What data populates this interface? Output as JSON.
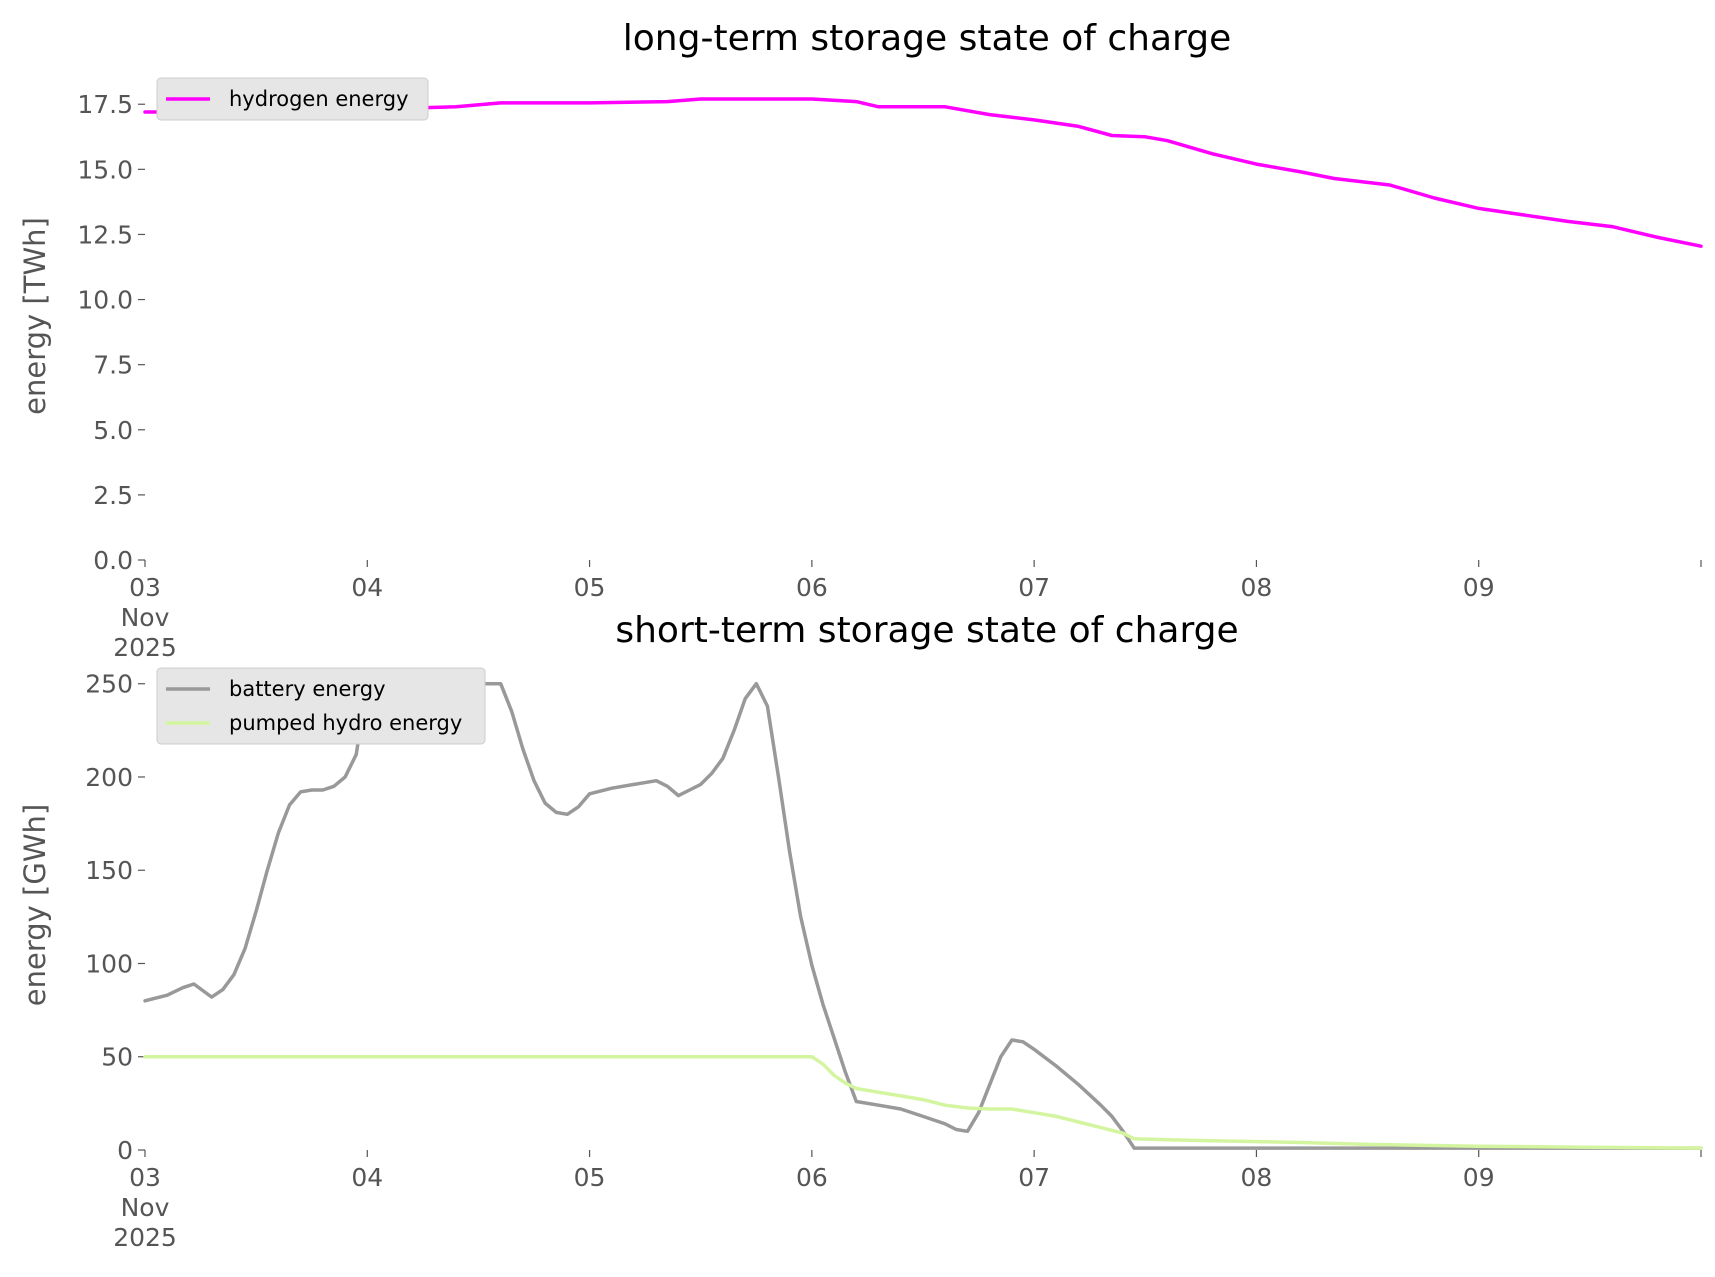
{
  "chart_data": [
    {
      "type": "line",
      "title": "long-term storage state of charge",
      "xlabel": "",
      "ylabel": "energy [TWh]",
      "ylim": [
        0,
        18.2
      ],
      "xlim": [
        0,
        7
      ],
      "x_unit": "days since 03 Nov 2025 00:00",
      "x_ticks": [
        0,
        1,
        2,
        3,
        4,
        5,
        6,
        7
      ],
      "x_tick_labels": [
        "03\nNov\n2025",
        "04",
        "05",
        "06",
        "07",
        "08",
        "09",
        ""
      ],
      "y_ticks": [
        0,
        2.5,
        5,
        7.5,
        10,
        12.5,
        15,
        17.5
      ],
      "y_tick_labels": [
        "0.0",
        "2.5",
        "5.0",
        "7.5",
        "10.0",
        "12.5",
        "15.0",
        "17.5"
      ],
      "grid": false,
      "legend_placement": "upper-left",
      "series": [
        {
          "name": "hydrogen energy",
          "color": "#ff00ff",
          "points": [
            [
              0,
              17.2
            ],
            [
              0.3,
              17.2
            ],
            [
              0.6,
              17.25
            ],
            [
              1.0,
              17.3
            ],
            [
              1.4,
              17.4
            ],
            [
              1.6,
              17.55
            ],
            [
              2.0,
              17.55
            ],
            [
              2.35,
              17.6
            ],
            [
              2.5,
              17.7
            ],
            [
              3.0,
              17.7
            ],
            [
              3.2,
              17.6
            ],
            [
              3.3,
              17.4
            ],
            [
              3.6,
              17.4
            ],
            [
              3.8,
              17.1
            ],
            [
              4.0,
              16.9
            ],
            [
              4.2,
              16.65
            ],
            [
              4.35,
              16.3
            ],
            [
              4.5,
              16.25
            ],
            [
              4.6,
              16.1
            ],
            [
              4.8,
              15.6
            ],
            [
              5.0,
              15.2
            ],
            [
              5.2,
              14.9
            ],
            [
              5.35,
              14.65
            ],
            [
              5.6,
              14.4
            ],
            [
              5.8,
              13.9
            ],
            [
              6.0,
              13.5
            ],
            [
              6.2,
              13.25
            ],
            [
              6.4,
              13.0
            ],
            [
              6.6,
              12.8
            ],
            [
              6.8,
              12.4
            ],
            [
              7.0,
              12.05
            ]
          ]
        }
      ]
    },
    {
      "type": "line",
      "title": "short-term storage state of charge",
      "xlabel": "",
      "ylabel": "energy [GWh]",
      "ylim": [
        0,
        252
      ],
      "xlim": [
        0,
        7
      ],
      "x_unit": "days since 03 Nov 2025 00:00",
      "x_ticks": [
        0,
        1,
        2,
        3,
        4,
        5,
        6,
        7
      ],
      "x_tick_labels": [
        "03\nNov\n2025",
        "04",
        "05",
        "06",
        "07",
        "08",
        "09",
        ""
      ],
      "y_ticks": [
        0,
        50,
        100,
        150,
        200,
        250
      ],
      "y_tick_labels": [
        "0",
        "50",
        "100",
        "150",
        "200",
        "250"
      ],
      "grid": false,
      "legend_placement": "upper-left",
      "series": [
        {
          "name": "battery energy",
          "color": "#999999",
          "points": [
            [
              0,
              80
            ],
            [
              0.1,
              83
            ],
            [
              0.17,
              87
            ],
            [
              0.22,
              89
            ],
            [
              0.3,
              82
            ],
            [
              0.35,
              86
            ],
            [
              0.4,
              94
            ],
            [
              0.45,
              108
            ],
            [
              0.5,
              128
            ],
            [
              0.55,
              150
            ],
            [
              0.6,
              170
            ],
            [
              0.65,
              185
            ],
            [
              0.7,
              192
            ],
            [
              0.75,
              193
            ],
            [
              0.8,
              193
            ],
            [
              0.85,
              195
            ],
            [
              0.9,
              200
            ],
            [
              0.95,
              212
            ],
            [
              1.0,
              250
            ],
            [
              1.1,
              250
            ],
            [
              1.6,
              250
            ],
            [
              1.65,
              235
            ],
            [
              1.7,
              215
            ],
            [
              1.75,
              198
            ],
            [
              1.8,
              186
            ],
            [
              1.85,
              181
            ],
            [
              1.9,
              180
            ],
            [
              1.95,
              184
            ],
            [
              2.0,
              191
            ],
            [
              2.1,
              194
            ],
            [
              2.2,
              196
            ],
            [
              2.3,
              198
            ],
            [
              2.35,
              195
            ],
            [
              2.4,
              190
            ],
            [
              2.45,
              193
            ],
            [
              2.5,
              196
            ],
            [
              2.55,
              202
            ],
            [
              2.6,
              210
            ],
            [
              2.65,
              225
            ],
            [
              2.7,
              242
            ],
            [
              2.75,
              250
            ],
            [
              2.8,
              238
            ],
            [
              2.85,
              200
            ],
            [
              2.9,
              160
            ],
            [
              2.95,
              125
            ],
            [
              3.0,
              99
            ],
            [
              3.05,
              78
            ],
            [
              3.1,
              60
            ],
            [
              3.15,
              42
            ],
            [
              3.2,
              26
            ],
            [
              3.3,
              24
            ],
            [
              3.4,
              22
            ],
            [
              3.5,
              18
            ],
            [
              3.6,
              14
            ],
            [
              3.65,
              11
            ],
            [
              3.7,
              10
            ],
            [
              3.75,
              20
            ],
            [
              3.8,
              35
            ],
            [
              3.85,
              50
            ],
            [
              3.9,
              59
            ],
            [
              3.95,
              58
            ],
            [
              4.0,
              54
            ],
            [
              4.1,
              45
            ],
            [
              4.2,
              35
            ],
            [
              4.3,
              24
            ],
            [
              4.35,
              18
            ],
            [
              4.4,
              10
            ],
            [
              4.45,
              1
            ],
            [
              5.0,
              1
            ],
            [
              6.0,
              1
            ],
            [
              7.0,
              1
            ]
          ]
        },
        {
          "name": "pumped hydro energy",
          "color": "#d4f5a0",
          "points": [
            [
              0,
              50
            ],
            [
              1.0,
              50
            ],
            [
              2.0,
              50
            ],
            [
              2.9,
              50
            ],
            [
              3.0,
              50
            ],
            [
              3.05,
              46
            ],
            [
              3.1,
              40
            ],
            [
              3.15,
              36
            ],
            [
              3.2,
              33
            ],
            [
              3.3,
              31
            ],
            [
              3.4,
              29
            ],
            [
              3.5,
              27
            ],
            [
              3.6,
              24
            ],
            [
              3.7,
              22.5
            ],
            [
              3.8,
              22
            ],
            [
              3.9,
              22
            ],
            [
              4.0,
              20
            ],
            [
              4.1,
              18
            ],
            [
              4.2,
              15
            ],
            [
              4.3,
              12
            ],
            [
              4.4,
              9
            ],
            [
              4.45,
              6
            ],
            [
              4.6,
              5.5
            ],
            [
              4.8,
              5
            ],
            [
              5.0,
              4.5
            ],
            [
              5.2,
              4
            ],
            [
              5.5,
              3
            ],
            [
              6.0,
              2
            ],
            [
              6.5,
              1.5
            ],
            [
              7.0,
              1
            ]
          ]
        }
      ]
    }
  ]
}
